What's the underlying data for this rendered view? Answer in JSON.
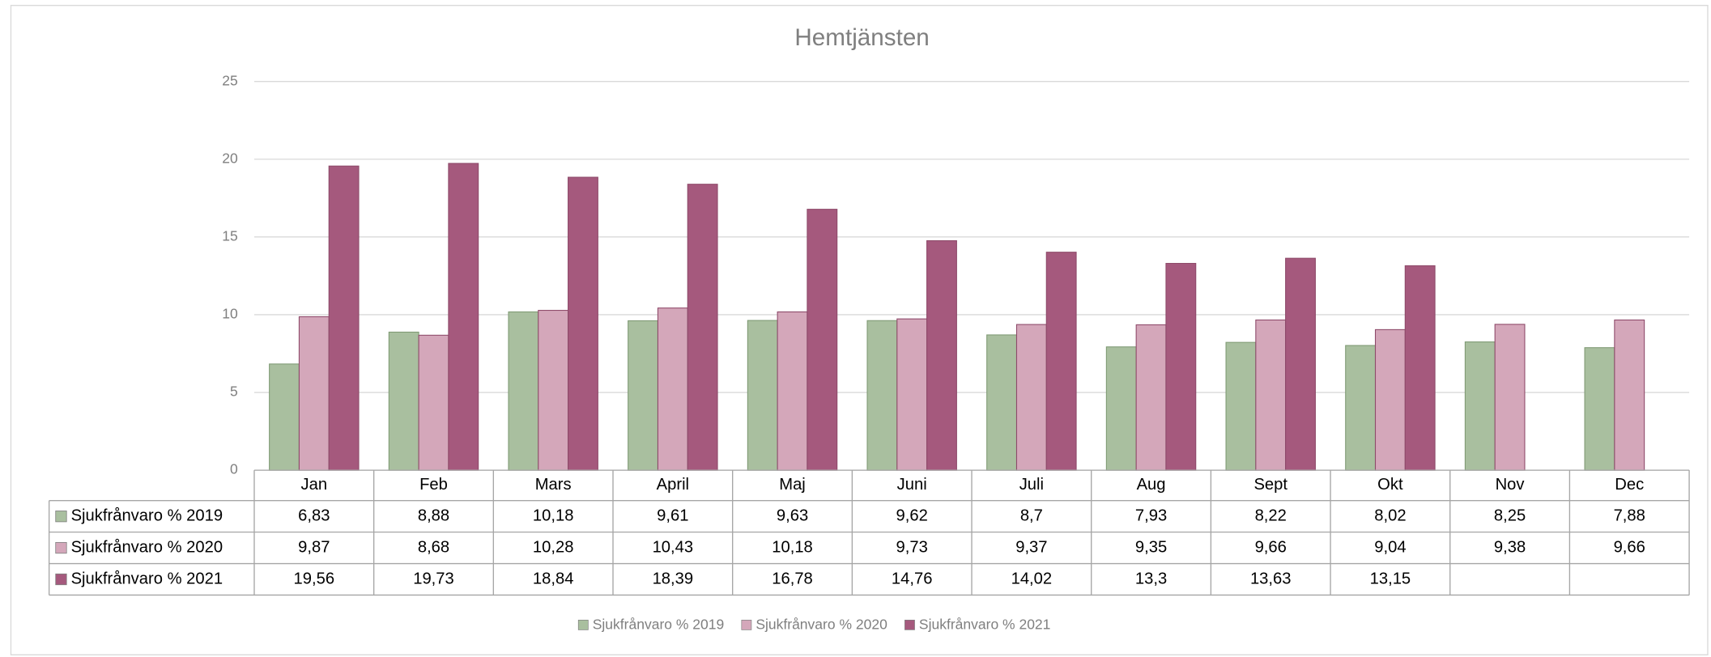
{
  "chart_data": {
    "type": "bar",
    "title": "Hemtjänsten",
    "categories": [
      "Jan",
      "Feb",
      "Mars",
      "April",
      "Maj",
      "Juni",
      "Juli",
      "Aug",
      "Sept",
      "Okt",
      "Nov",
      "Dec"
    ],
    "series": [
      {
        "name": "Sjukfrånvaro % 2019",
        "color": "#a9bf9f",
        "values": [
          6.83,
          8.88,
          10.18,
          9.61,
          9.63,
          9.62,
          8.7,
          7.93,
          8.22,
          8.02,
          8.25,
          7.88
        ],
        "value_labels": [
          "6,83",
          "8,88",
          "10,18",
          "9,61",
          "9,63",
          "9,62",
          "8,7",
          "7,93",
          "8,22",
          "8,02",
          "8,25",
          "7,88"
        ]
      },
      {
        "name": "Sjukfrånvaro % 2020",
        "color": "#d4a7ba",
        "values": [
          9.87,
          8.68,
          10.28,
          10.43,
          10.18,
          9.73,
          9.37,
          9.35,
          9.66,
          9.04,
          9.38,
          9.66
        ],
        "value_labels": [
          "9,87",
          "8,68",
          "10,28",
          "10,43",
          "10,18",
          "9,73",
          "9,37",
          "9,35",
          "9,66",
          "9,04",
          "9,38",
          "9,66"
        ]
      },
      {
        "name": "Sjukfrånvaro % 2021",
        "color": "#a5597d",
        "values": [
          19.56,
          19.73,
          18.84,
          18.39,
          16.78,
          14.76,
          14.02,
          13.3,
          13.63,
          13.15,
          null,
          null
        ],
        "value_labels": [
          "19,56",
          "19,73",
          "18,84",
          "18,39",
          "16,78",
          "14,76",
          "14,02",
          "13,3",
          "13,63",
          "13,15",
          null,
          null
        ]
      }
    ],
    "ylim": [
      0,
      25
    ],
    "yticks": [
      0,
      5,
      10,
      15,
      20,
      25
    ],
    "grid": true,
    "legend": "bottom"
  }
}
